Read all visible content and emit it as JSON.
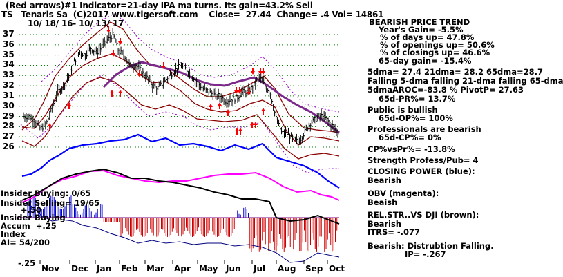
{
  "header": {
    "line1": "(Red arrows)#1 Indicator=21-day IPA ma turns. Its gain=43.2% Sell",
    "line2": "TS   Tenaris Sa  (C)2017 www.tigersoft.com    Close=  27.44  Change= .4 Vol= 14861",
    "line3": "10/ 18/ 16- 10/ 13/ 17"
  },
  "right_panel": {
    "title": "BEARISH PRICE TREND",
    "years_gain": "Year's Gain= -5.5%",
    "days_up": "% of days up= 47.8%",
    "openings_up": "% of openings up= 50.6%",
    "closings_up": "% of closings up= 46.6%",
    "gain65": "65-day gain= -15.4%",
    "mas": "5dma= 27.4 21dma= 28.2 65dma=28.7",
    "falling": "Falling 5-dma falling 21-dma falling 65-dma",
    "aroc": "5dmaAROC=-83.8 % PivotP= 27.63",
    "pr65": "65d-PR%= 13.7%",
    "public": "Public is bullish",
    "op65": "65d-OP%= 100%",
    "pros": "Professionals are bearish",
    "cp65": "65d-CP%= 0%",
    "cpvspr": "CP%vsPr%= -13.8%",
    "strength": "Strength Profess/Pub= 4",
    "cp_title": "CLOSING POWER (blue):",
    "cp_val": "Bearish",
    "obv_title": "OBV (magenta):",
    "obv_val": "Beaish",
    "rel_title": "REL.STR..VS DJI (brown):",
    "rel_val": "Bearish",
    "itrs": "ITRS= -.077",
    "bearish": "Bearish: Distrubtion Falling.",
    "ip": "IP= -.267"
  },
  "indicator_labels": {
    "insider_buying": "Insider Buying: 0/65",
    "insider_selling": "Insider Selling= 19/65",
    "plus50": "+.50",
    "accum1": "Insider Buying",
    "accum2": "Accum  +.25",
    "accum3": "Index",
    "ai": "AI= 54/200",
    "minus25": "-.25"
  },
  "colors": {
    "price_bar": "#000000",
    "ma_band": "#8b0000",
    "band_outer": "#800080",
    "ma65": "#7b2a8b",
    "closing_power": "#0000ff",
    "obv": "#ff00ff",
    "rel_strength": "#000000",
    "accum_pos": "#0000cc",
    "accum_neg": "#cc0000",
    "grid": "#008000",
    "arrows": "#ff0000"
  },
  "chart_data": {
    "type": "line",
    "ylim": [
      25,
      37.5
    ],
    "y_ticks": [
      26,
      27,
      28,
      29,
      30,
      31,
      32,
      33,
      34,
      35,
      36,
      37
    ],
    "x_ticks": [
      "Nov",
      "Dec",
      "Jan",
      "Feb",
      "Mar",
      "Apr",
      "May",
      "Jun",
      "Jul",
      "Aug",
      "Sep",
      "Oct"
    ],
    "series": [
      {
        "values": [
          29.0,
          29.0,
          28.6,
          27.8,
          28.2,
          29.7,
          31.3,
          31.9,
          32.9,
          34.3,
          35.3,
          35.0,
          35.7,
          35.2,
          35.8,
          36.5,
          37.0,
          35.3,
          35.0,
          33.9,
          34.1,
          33.4,
          32.8,
          32.0,
          31.8,
          32.3,
          33.0,
          33.5,
          34.0,
          33.6,
          33.0,
          32.3,
          31.7,
          31.4,
          31.1,
          31.0,
          30.5,
          30.7,
          30.8,
          31.4,
          31.4,
          32.0,
          32.9,
          32.0,
          31.3,
          28.8,
          27.4,
          27.3,
          26.8,
          26.5,
          27.4,
          28.3,
          28.7,
          29.1,
          28.7,
          28.1,
          27.4
        ]
      }
    ]
  }
}
